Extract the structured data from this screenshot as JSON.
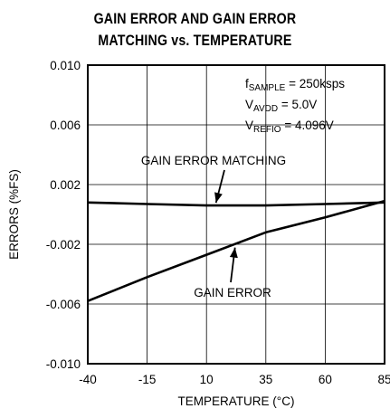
{
  "chart_data": {
    "type": "line",
    "title_lines": [
      "GAIN ERROR AND GAIN ERROR",
      "MATCHING vs. TEMPERATURE"
    ],
    "xlabel": "TEMPERATURE (°C)",
    "ylabel": "ERRORS (%FS)",
    "xlim": [
      -40,
      85
    ],
    "ylim": [
      -0.01,
      0.01
    ],
    "x_ticks": [
      -40,
      -15,
      10,
      35,
      60,
      85
    ],
    "x_tick_labels": [
      "-40",
      "-15",
      "10",
      "35",
      "60",
      "85"
    ],
    "y_ticks": [
      -0.01,
      -0.006,
      -0.002,
      0.002,
      0.006,
      0.01
    ],
    "y_tick_labels": [
      "-0.010",
      "-0.006",
      "-0.002",
      "0.002",
      "0.006",
      "0.010"
    ],
    "grid": true,
    "series": [
      {
        "name": "GAIN ERROR MATCHING",
        "x": [
          -40,
          -15,
          10,
          35,
          60,
          85
        ],
        "y": [
          0.0008,
          0.0007,
          0.0006,
          0.0006,
          0.0007,
          0.0008
        ]
      },
      {
        "name": "GAIN ERROR",
        "x": [
          -40,
          -15,
          10,
          35,
          60,
          85
        ],
        "y": [
          -0.0058,
          -0.0042,
          -0.0027,
          -0.0012,
          -0.0002,
          0.0009
        ]
      }
    ],
    "conditions": [
      {
        "main": "f",
        "sub": "SAMPLE",
        "rest": " = 250ksps"
      },
      {
        "main": "V",
        "sub": "AVDD",
        "rest": " = 5.0V"
      },
      {
        "main": "V",
        "sub": "REFIO",
        "rest": " = 4.096V"
      }
    ],
    "annotations": [
      {
        "text": "GAIN ERROR MATCHING",
        "series": 0,
        "at_x": 14
      },
      {
        "text": "GAIN ERROR",
        "series": 1,
        "at_x": 22
      }
    ]
  }
}
